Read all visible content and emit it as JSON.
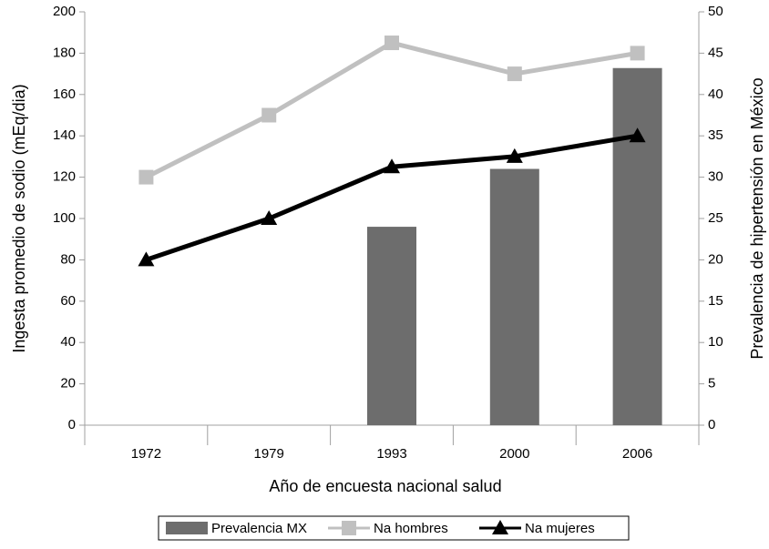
{
  "chart_data": {
    "type": "bar_line",
    "xlabel": "Año de encuesta nacional salud",
    "ylabel": "Ingesta promedio de sodio (mEq/dia)",
    "y2label": "Prevalencia de hipertensión en México",
    "categories": [
      "1972",
      "1979",
      "1993",
      "2000",
      "2006"
    ],
    "series": [
      {
        "name": "Prevalencia MX",
        "type": "bar",
        "axis": "y2",
        "color": "#6d6d6d",
        "values": [
          null,
          null,
          24,
          31,
          43.2
        ]
      },
      {
        "name": "Na hombres",
        "type": "line",
        "marker": "square",
        "color": "#c0c0c0",
        "values": [
          120,
          150,
          185,
          170,
          180
        ]
      },
      {
        "name": "Na mujeres",
        "type": "line",
        "marker": "triangle",
        "color": "#000000",
        "values": [
          80,
          100,
          125,
          130,
          140
        ]
      }
    ],
    "ylim": [
      0,
      200
    ],
    "yticks": [
      0,
      20,
      40,
      60,
      80,
      100,
      120,
      140,
      160,
      180,
      200
    ],
    "y2lim": [
      0,
      50
    ],
    "y2ticks": [
      0,
      5,
      10,
      15,
      20,
      25,
      30,
      35,
      40,
      45,
      50
    ],
    "legend": "bottom"
  }
}
